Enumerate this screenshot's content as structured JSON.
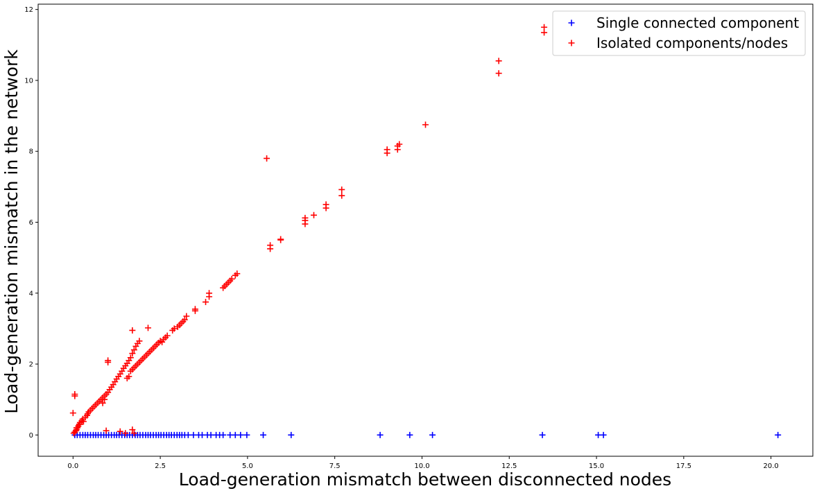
{
  "chart_data": {
    "type": "scatter",
    "title": "",
    "xlabel": "Load-generation mismatch between disconnected nodes",
    "ylabel": "Load-generation mismatch in the network",
    "xlim": [
      -1.0,
      21.2
    ],
    "ylim": [
      -0.6,
      12.15
    ],
    "xticks": [
      0.0,
      2.5,
      5.0,
      7.5,
      10.0,
      12.5,
      15.0,
      17.5,
      20.0
    ],
    "xtick_labels": [
      "0.0",
      "2.5",
      "5.0",
      "7.5",
      "10.0",
      "12.5",
      "15.0",
      "17.5",
      "20.0"
    ],
    "yticks": [
      0,
      2,
      4,
      6,
      8,
      10,
      12
    ],
    "ytick_labels": [
      "0",
      "2",
      "4",
      "6",
      "8",
      "10",
      "12"
    ],
    "grid": false,
    "legend_position": "upper right",
    "marker": "plus",
    "series": [
      {
        "name": "Single connected component",
        "color": "#0000ff",
        "points": [
          [
            0.05,
            0
          ],
          [
            0.12,
            0
          ],
          [
            0.2,
            0
          ],
          [
            0.28,
            0
          ],
          [
            0.35,
            0
          ],
          [
            0.42,
            0
          ],
          [
            0.5,
            0
          ],
          [
            0.58,
            0
          ],
          [
            0.65,
            0
          ],
          [
            0.72,
            0
          ],
          [
            0.8,
            0
          ],
          [
            0.88,
            0
          ],
          [
            0.95,
            0
          ],
          [
            1.02,
            0
          ],
          [
            1.1,
            0
          ],
          [
            1.18,
            0
          ],
          [
            1.25,
            0
          ],
          [
            1.32,
            0
          ],
          [
            1.4,
            0
          ],
          [
            1.48,
            0
          ],
          [
            1.55,
            0
          ],
          [
            1.62,
            0
          ],
          [
            1.7,
            0
          ],
          [
            1.78,
            0
          ],
          [
            1.85,
            0
          ],
          [
            1.92,
            0
          ],
          [
            2.0,
            0
          ],
          [
            2.08,
            0
          ],
          [
            2.15,
            0
          ],
          [
            2.22,
            0
          ],
          [
            2.3,
            0
          ],
          [
            2.38,
            0
          ],
          [
            2.45,
            0
          ],
          [
            2.52,
            0
          ],
          [
            2.6,
            0
          ],
          [
            2.68,
            0
          ],
          [
            2.75,
            0
          ],
          [
            2.82,
            0
          ],
          [
            2.9,
            0
          ],
          [
            2.98,
            0
          ],
          [
            3.05,
            0
          ],
          [
            3.12,
            0
          ],
          [
            3.2,
            0
          ],
          [
            3.3,
            0
          ],
          [
            3.45,
            0
          ],
          [
            3.6,
            0
          ],
          [
            3.7,
            0
          ],
          [
            3.85,
            0
          ],
          [
            3.95,
            0
          ],
          [
            4.1,
            0
          ],
          [
            4.2,
            0
          ],
          [
            4.3,
            0
          ],
          [
            4.5,
            0
          ],
          [
            4.65,
            0
          ],
          [
            4.8,
            0
          ],
          [
            4.98,
            0
          ],
          [
            5.45,
            0
          ],
          [
            6.25,
            0
          ],
          [
            8.8,
            0
          ],
          [
            9.65,
            0
          ],
          [
            10.3,
            0
          ],
          [
            13.45,
            0
          ],
          [
            15.05,
            0
          ],
          [
            15.2,
            0
          ],
          [
            20.2,
            0
          ]
        ]
      },
      {
        "name": "Isolated components/nodes",
        "color": "#ff0000",
        "points": [
          [
            0.0,
            0.62
          ],
          [
            0.05,
            1.1
          ],
          [
            0.05,
            1.15
          ],
          [
            0.02,
            0.05
          ],
          [
            0.05,
            0.08
          ],
          [
            0.08,
            0.12
          ],
          [
            0.1,
            0.15
          ],
          [
            0.12,
            0.2
          ],
          [
            0.15,
            0.25
          ],
          [
            0.18,
            0.3
          ],
          [
            0.2,
            0.35
          ],
          [
            0.25,
            0.4
          ],
          [
            0.28,
            0.45
          ],
          [
            0.3,
            0.38
          ],
          [
            0.35,
            0.5
          ],
          [
            0.4,
            0.55
          ],
          [
            0.42,
            0.6
          ],
          [
            0.45,
            0.65
          ],
          [
            0.5,
            0.7
          ],
          [
            0.55,
            0.75
          ],
          [
            0.6,
            0.8
          ],
          [
            0.65,
            0.85
          ],
          [
            0.7,
            0.9
          ],
          [
            0.75,
            0.95
          ],
          [
            0.8,
            1.0
          ],
          [
            0.85,
            1.05
          ],
          [
            0.9,
            1.1
          ],
          [
            0.95,
            1.15
          ],
          [
            1.0,
            1.2
          ],
          [
            1.05,
            1.28
          ],
          [
            1.1,
            1.35
          ],
          [
            1.15,
            1.42
          ],
          [
            1.2,
            1.5
          ],
          [
            1.25,
            1.58
          ],
          [
            1.3,
            1.65
          ],
          [
            1.35,
            1.72
          ],
          [
            1.4,
            1.8
          ],
          [
            1.45,
            1.88
          ],
          [
            1.5,
            1.95
          ],
          [
            1.55,
            2.02
          ],
          [
            1.6,
            2.1
          ],
          [
            1.65,
            2.18
          ],
          [
            1.7,
            2.3
          ],
          [
            1.75,
            2.4
          ],
          [
            1.8,
            2.5
          ],
          [
            1.85,
            2.58
          ],
          [
            1.9,
            2.65
          ],
          [
            1.0,
            2.05
          ],
          [
            1.0,
            2.1
          ],
          [
            0.9,
            1.0
          ],
          [
            0.85,
            0.9
          ],
          [
            0.2,
            0.3
          ],
          [
            0.1,
            0.2
          ],
          [
            1.55,
            1.6
          ],
          [
            1.6,
            1.65
          ],
          [
            1.65,
            1.8
          ],
          [
            1.7,
            1.85
          ],
          [
            1.75,
            1.9
          ],
          [
            1.8,
            1.95
          ],
          [
            1.85,
            2.0
          ],
          [
            1.9,
            2.05
          ],
          [
            1.95,
            2.1
          ],
          [
            2.0,
            2.15
          ],
          [
            2.05,
            2.2
          ],
          [
            2.1,
            2.25
          ],
          [
            2.15,
            2.3
          ],
          [
            2.2,
            2.35
          ],
          [
            2.25,
            2.4
          ],
          [
            2.3,
            2.45
          ],
          [
            2.35,
            2.5
          ],
          [
            2.4,
            2.55
          ],
          [
            2.45,
            2.6
          ],
          [
            2.5,
            2.65
          ],
          [
            2.55,
            2.62
          ],
          [
            2.6,
            2.7
          ],
          [
            2.65,
            2.75
          ],
          [
            2.7,
            2.8
          ],
          [
            2.85,
            2.95
          ],
          [
            2.9,
            3.0
          ],
          [
            3.0,
            3.05
          ],
          [
            3.05,
            3.1
          ],
          [
            3.1,
            3.15
          ],
          [
            3.15,
            3.2
          ],
          [
            3.2,
            3.25
          ],
          [
            3.25,
            3.35
          ],
          [
            3.5,
            3.5
          ],
          [
            3.5,
            3.55
          ],
          [
            3.8,
            3.75
          ],
          [
            3.9,
            3.9
          ],
          [
            3.9,
            4.0
          ],
          [
            4.3,
            4.15
          ],
          [
            4.35,
            4.2
          ],
          [
            4.4,
            4.25
          ],
          [
            4.45,
            4.3
          ],
          [
            4.5,
            4.35
          ],
          [
            4.55,
            4.4
          ],
          [
            4.65,
            4.5
          ],
          [
            4.7,
            4.55
          ],
          [
            1.7,
            2.95
          ],
          [
            2.15,
            3.02
          ],
          [
            0.95,
            0.12
          ],
          [
            1.35,
            0.1
          ],
          [
            1.5,
            0.05
          ],
          [
            1.7,
            0.15
          ],
          [
            1.75,
            0.05
          ],
          [
            5.55,
            7.8
          ],
          [
            5.65,
            5.25
          ],
          [
            5.65,
            5.35
          ],
          [
            5.95,
            5.5
          ],
          [
            5.95,
            5.52
          ],
          [
            6.65,
            5.95
          ],
          [
            6.65,
            6.05
          ],
          [
            6.65,
            6.12
          ],
          [
            6.9,
            6.2
          ],
          [
            7.25,
            6.4
          ],
          [
            7.25,
            6.5
          ],
          [
            7.7,
            6.75
          ],
          [
            7.7,
            6.92
          ],
          [
            9.0,
            7.95
          ],
          [
            9.0,
            8.05
          ],
          [
            9.3,
            8.05
          ],
          [
            9.3,
            8.15
          ],
          [
            9.35,
            8.2
          ],
          [
            10.1,
            8.75
          ],
          [
            12.2,
            10.2
          ],
          [
            12.2,
            10.55
          ],
          [
            13.5,
            11.35
          ],
          [
            13.5,
            11.5
          ]
        ]
      }
    ]
  }
}
